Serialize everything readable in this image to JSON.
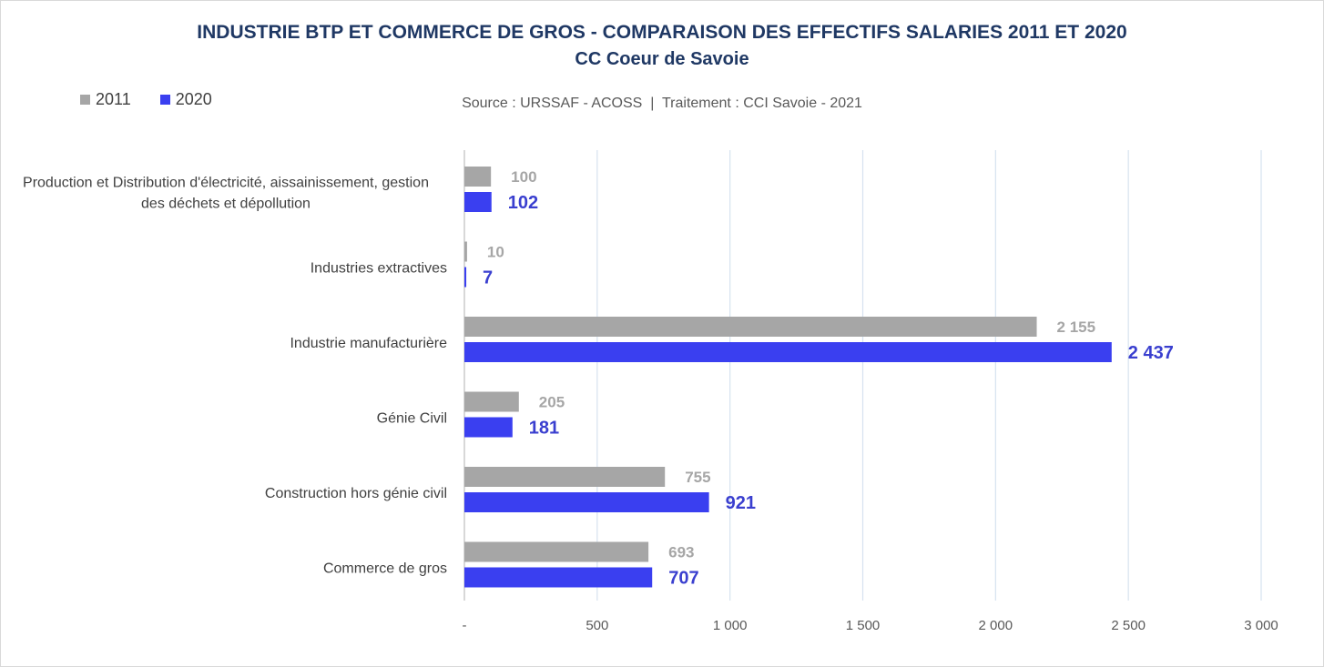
{
  "chart_data": {
    "type": "bar",
    "orientation": "horizontal",
    "title": "INDUSTRIE BTP ET COMMERCE DE GROS - COMPARAISON DES EFFECTIFS SALARIES 2011 ET 2020",
    "subtitle": "CC Coeur de Savoie",
    "source": "Source : URSSAF - ACOSS  |  Traitement : CCI Savoie - 2021",
    "categories": [
      [
        "Production et Distribution d'électricité, aissainissement, gestion",
        "des déchets et dépollution"
      ],
      [
        "Industries extractives"
      ],
      [
        "Industrie manufacturière"
      ],
      [
        "Génie Civil"
      ],
      [
        "Construction hors génie civil"
      ],
      [
        "Commerce de gros"
      ]
    ],
    "series": [
      {
        "name": "2011",
        "color": "#a6a6a6",
        "values": [
          100,
          10,
          2155,
          205,
          755,
          693
        ],
        "labels": [
          "100",
          "10",
          "2 155",
          "205",
          "755",
          "693"
        ]
      },
      {
        "name": "2020",
        "color": "#3a3ff0",
        "values": [
          102,
          7,
          2437,
          181,
          921,
          707
        ],
        "labels": [
          "102",
          "7",
          "2 437",
          "181",
          "921",
          "707"
        ]
      }
    ],
    "xlim": [
      0,
      3000
    ],
    "xticks": [
      0,
      500,
      1000,
      1500,
      2000,
      2500,
      3000
    ],
    "xtick_labels": [
      "-",
      "500",
      "1 000",
      "1 500",
      "2 000",
      "2 500",
      "3 000"
    ],
    "gridlines": "vertical",
    "legend_position": "top-left"
  }
}
